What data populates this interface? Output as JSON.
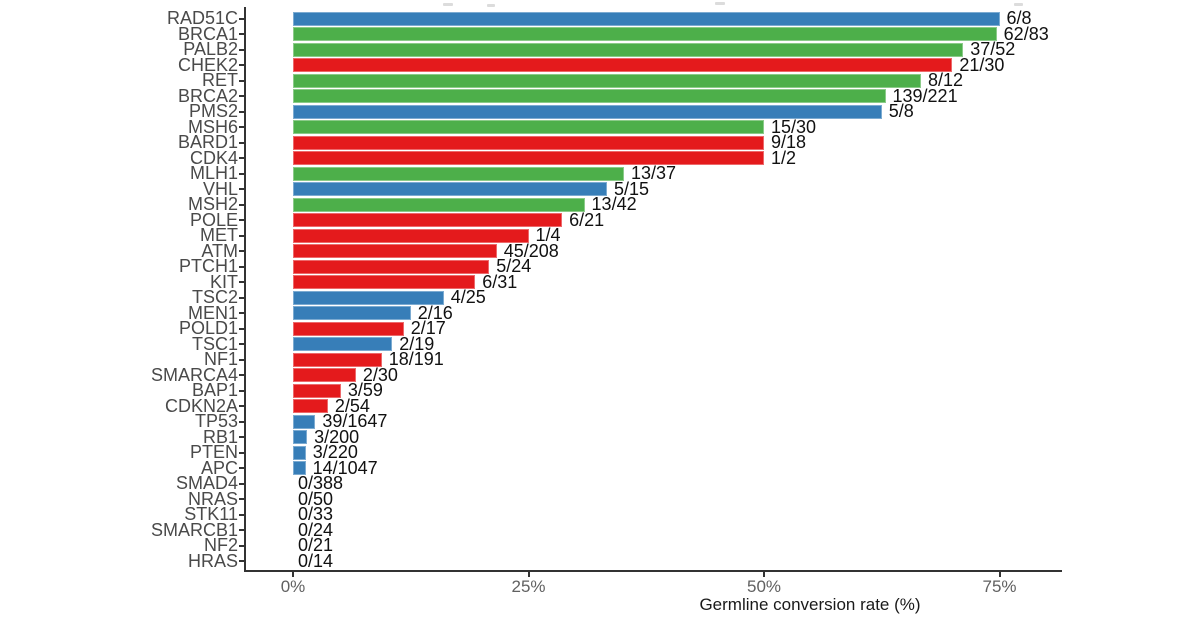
{
  "figure": {
    "background": "#ffffff",
    "colors": {
      "blue": "#377EB8",
      "green": "#4DAF4A",
      "red": "#E41A1C",
      "none": "transparent",
      "axis_line": "#333333",
      "gene_label_text": "#4a4a4a",
      "tick_label_text": "#616161",
      "value_label_text": "#111111"
    }
  },
  "chart_data": {
    "type": "bar",
    "orientation": "horizontal",
    "title": "",
    "xlabel": "Germline conversion rate (%)",
    "ylabel": "",
    "xlim": [
      0,
      81.5
    ],
    "grid": false,
    "legend": false,
    "x_ticks": [
      {
        "label": "0%",
        "pct": 0
      },
      {
        "label": "25%",
        "pct": 25
      },
      {
        "label": "50%",
        "pct": 50
      },
      {
        "label": "75%",
        "pct": 75
      }
    ],
    "categories": [
      "RAD51C",
      "BRCA1",
      "PALB2",
      "CHEK2",
      "RET",
      "BRCA2",
      "PMS2",
      "MSH6",
      "BARD1",
      "CDK4",
      "MLH1",
      "VHL",
      "MSH2",
      "POLE",
      "MET",
      "ATM",
      "PTCH1",
      "KIT",
      "TSC2",
      "MEN1",
      "POLD1",
      "TSC1",
      "NF1",
      "SMARCA4",
      "BAP1",
      "CDKN2A",
      "TP53",
      "RB1",
      "PTEN",
      "APC",
      "SMAD4",
      "NRAS",
      "STK11",
      "SMARCB1",
      "NF2",
      "HRAS"
    ],
    "series": [
      {
        "name": "Germline conversion rate (%)",
        "values": [
          75.0,
          74.7,
          71.15,
          70.0,
          66.67,
          62.9,
          62.5,
          50.0,
          50.0,
          50.0,
          35.14,
          33.33,
          30.95,
          28.57,
          25.0,
          21.63,
          20.83,
          19.35,
          16.0,
          12.5,
          11.76,
          10.53,
          9.42,
          6.67,
          5.08,
          3.7,
          2.37,
          1.5,
          1.36,
          1.34,
          0,
          0,
          0,
          0,
          0,
          0
        ]
      }
    ],
    "bars": [
      {
        "gene": "RAD51C",
        "label": "6/8",
        "numerator": 6,
        "denominator": 8,
        "pct": 75.0,
        "color": "blue"
      },
      {
        "gene": "BRCA1",
        "label": "62/83",
        "numerator": 62,
        "denominator": 83,
        "pct": 74.7,
        "color": "green"
      },
      {
        "gene": "PALB2",
        "label": "37/52",
        "numerator": 37,
        "denominator": 52,
        "pct": 71.15,
        "color": "green"
      },
      {
        "gene": "CHEK2",
        "label": "21/30",
        "numerator": 21,
        "denominator": 30,
        "pct": 70.0,
        "color": "red"
      },
      {
        "gene": "RET",
        "label": "8/12",
        "numerator": 8,
        "denominator": 12,
        "pct": 66.67,
        "color": "green"
      },
      {
        "gene": "BRCA2",
        "label": "139/221",
        "numerator": 139,
        "denominator": 221,
        "pct": 62.9,
        "color": "green"
      },
      {
        "gene": "PMS2",
        "label": "5/8",
        "numerator": 5,
        "denominator": 8,
        "pct": 62.5,
        "color": "blue"
      },
      {
        "gene": "MSH6",
        "label": "15/30",
        "numerator": 15,
        "denominator": 30,
        "pct": 50.0,
        "color": "green"
      },
      {
        "gene": "BARD1",
        "label": "9/18",
        "numerator": 9,
        "denominator": 18,
        "pct": 50.0,
        "color": "red"
      },
      {
        "gene": "CDK4",
        "label": "1/2",
        "numerator": 1,
        "denominator": 2,
        "pct": 50.0,
        "color": "red"
      },
      {
        "gene": "MLH1",
        "label": "13/37",
        "numerator": 13,
        "denominator": 37,
        "pct": 35.14,
        "color": "green"
      },
      {
        "gene": "VHL",
        "label": "5/15",
        "numerator": 5,
        "denominator": 15,
        "pct": 33.33,
        "color": "blue"
      },
      {
        "gene": "MSH2",
        "label": "13/42",
        "numerator": 13,
        "denominator": 42,
        "pct": 30.95,
        "color": "green"
      },
      {
        "gene": "POLE",
        "label": "6/21",
        "numerator": 6,
        "denominator": 21,
        "pct": 28.57,
        "color": "red"
      },
      {
        "gene": "MET",
        "label": "1/4",
        "numerator": 1,
        "denominator": 4,
        "pct": 25.0,
        "color": "red"
      },
      {
        "gene": "ATM",
        "label": "45/208",
        "numerator": 45,
        "denominator": 208,
        "pct": 21.63,
        "color": "red"
      },
      {
        "gene": "PTCH1",
        "label": "5/24",
        "numerator": 5,
        "denominator": 24,
        "pct": 20.83,
        "color": "red"
      },
      {
        "gene": "KIT",
        "label": "6/31",
        "numerator": 6,
        "denominator": 31,
        "pct": 19.35,
        "color": "red"
      },
      {
        "gene": "TSC2",
        "label": "4/25",
        "numerator": 4,
        "denominator": 25,
        "pct": 16.0,
        "color": "blue"
      },
      {
        "gene": "MEN1",
        "label": "2/16",
        "numerator": 2,
        "denominator": 16,
        "pct": 12.5,
        "color": "blue"
      },
      {
        "gene": "POLD1",
        "label": "2/17",
        "numerator": 2,
        "denominator": 17,
        "pct": 11.76,
        "color": "red"
      },
      {
        "gene": "TSC1",
        "label": "2/19",
        "numerator": 2,
        "denominator": 19,
        "pct": 10.53,
        "color": "blue"
      },
      {
        "gene": "NF1",
        "label": "18/191",
        "numerator": 18,
        "denominator": 191,
        "pct": 9.42,
        "color": "red"
      },
      {
        "gene": "SMARCA4",
        "label": "2/30",
        "numerator": 2,
        "denominator": 30,
        "pct": 6.67,
        "color": "red"
      },
      {
        "gene": "BAP1",
        "label": "3/59",
        "numerator": 3,
        "denominator": 59,
        "pct": 5.08,
        "color": "red"
      },
      {
        "gene": "CDKN2A",
        "label": "2/54",
        "numerator": 2,
        "denominator": 54,
        "pct": 3.7,
        "color": "red"
      },
      {
        "gene": "TP53",
        "label": "39/1647",
        "numerator": 39,
        "denominator": 1647,
        "pct": 2.37,
        "color": "blue"
      },
      {
        "gene": "RB1",
        "label": "3/200",
        "numerator": 3,
        "denominator": 200,
        "pct": 1.5,
        "color": "blue"
      },
      {
        "gene": "PTEN",
        "label": "3/220",
        "numerator": 3,
        "denominator": 220,
        "pct": 1.36,
        "color": "blue"
      },
      {
        "gene": "APC",
        "label": "14/1047",
        "numerator": 14,
        "denominator": 1047,
        "pct": 1.34,
        "color": "blue"
      },
      {
        "gene": "SMAD4",
        "label": "0/388",
        "numerator": 0,
        "denominator": 388,
        "pct": 0,
        "color": "none"
      },
      {
        "gene": "NRAS",
        "label": "0/50",
        "numerator": 0,
        "denominator": 50,
        "pct": 0,
        "color": "none"
      },
      {
        "gene": "STK11",
        "label": "0/33",
        "numerator": 0,
        "denominator": 33,
        "pct": 0,
        "color": "none"
      },
      {
        "gene": "SMARCB1",
        "label": "0/24",
        "numerator": 0,
        "denominator": 24,
        "pct": 0,
        "color": "none"
      },
      {
        "gene": "NF2",
        "label": "0/21",
        "numerator": 0,
        "denominator": 21,
        "pct": 0,
        "color": "none"
      },
      {
        "gene": "HRAS",
        "label": "0/14",
        "numerator": 0,
        "denominator": 14,
        "pct": 0,
        "color": "none"
      }
    ]
  }
}
